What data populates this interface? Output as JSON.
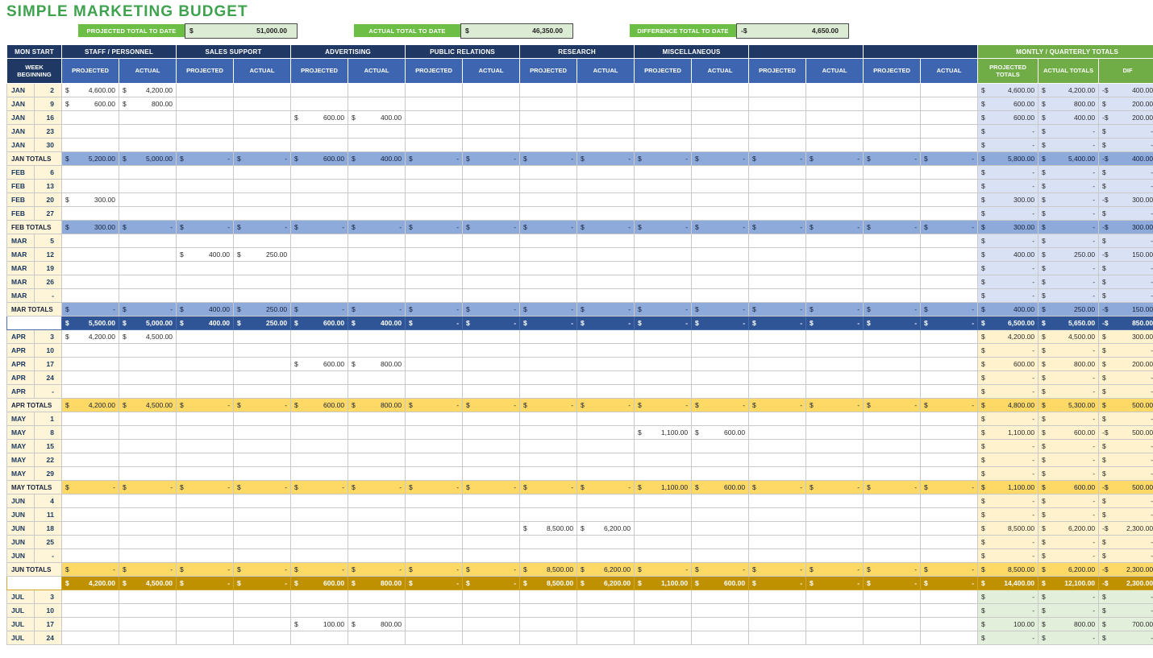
{
  "title": "SIMPLE MARKETING BUDGET",
  "summary": [
    {
      "label": "PROJECTED TOTAL TO DATE",
      "currency": "$",
      "value": "51,000.00"
    },
    {
      "label": "ACTUAL TOTAL TO DATE",
      "currency": "$",
      "value": "46,350.00"
    },
    {
      "label": "DIFFERENCE TOTAL TO DATE",
      "currency": "-$",
      "value": "4,650.00"
    }
  ],
  "colors": {
    "title_green": "#3FA24E",
    "header_navy": "#1F3864",
    "subheader_blue": "#3E66B0",
    "totals_green": "#70AD47",
    "summary_label_green": "#6CBE45",
    "summary_value_bg": "#DCEBD4",
    "label_cream": "#FEF4D8",
    "q1_light": "#D9E1F5",
    "q1_mid": "#8EAADB",
    "q1_dark": "#2F5597",
    "q2_light": "#FFF2CC",
    "q2_mid": "#FFD966",
    "q2_dark": "#BF9000",
    "q3_light": "#E2EFDA"
  },
  "table": {
    "corner": "MON START",
    "week_col": "WEEK BEGINNING",
    "groups": [
      "STAFF / PERSONNEL",
      "SALES SUPPORT",
      "ADVERTISING",
      "PUBLIC RELATIONS",
      "RESEARCH",
      "MISCELLANEOUS",
      "",
      ""
    ],
    "sub": {
      "projected": "PROJECTED",
      "actual": "ACTUAL"
    },
    "totals_header": "MONTLY / QUARTERLY TOTALS",
    "totals_cols": [
      "PROJECTED TOTALS",
      "ACTUAL TOTALS",
      "DIF"
    ],
    "rows": [
      {
        "m": "JAN",
        "d": "2",
        "type": "week",
        "q": "q1",
        "cells": {
          "0": "4,600.00",
          "1": "4,200.00"
        },
        "tp": "4,600.00",
        "ta": "4,200.00",
        "td": "400.00",
        "ts": "-$"
      },
      {
        "m": "JAN",
        "d": "9",
        "type": "week",
        "q": "q1",
        "cells": {
          "0": "600.00",
          "1": "800.00"
        },
        "tp": "600.00",
        "ta": "800.00",
        "td": "200.00",
        "ts": "$"
      },
      {
        "m": "JAN",
        "d": "16",
        "type": "week",
        "q": "q1",
        "cells": {
          "4": "600.00",
          "5": "400.00"
        },
        "tp": "600.00",
        "ta": "400.00",
        "td": "200.00",
        "ts": "-$"
      },
      {
        "m": "JAN",
        "d": "23",
        "type": "week",
        "q": "q1",
        "cells": {},
        "tp": "-",
        "ta": "-",
        "td": "-",
        "ts": "$"
      },
      {
        "m": "JAN",
        "d": "30",
        "type": "week",
        "q": "q1",
        "cells": {},
        "tp": "-",
        "ta": "-",
        "td": "-",
        "ts": "$"
      },
      {
        "label": "JAN TOTALS",
        "type": "mtotal",
        "q": "q1",
        "cells": [
          "5,200.00",
          "5,000.00",
          "-",
          "-",
          "600.00",
          "400.00",
          "-",
          "-",
          "-",
          "-",
          "-",
          "-",
          "-",
          "-",
          "-",
          "-"
        ],
        "tp": "5,800.00",
        "ta": "5,400.00",
        "td": "400.00",
        "ts": "-$"
      },
      {
        "m": "FEB",
        "d": "6",
        "type": "week",
        "q": "q1",
        "cells": {},
        "tp": "-",
        "ta": "-",
        "td": "-",
        "ts": "$"
      },
      {
        "m": "FEB",
        "d": "13",
        "type": "week",
        "q": "q1",
        "cells": {},
        "tp": "-",
        "ta": "-",
        "td": "-",
        "ts": "$"
      },
      {
        "m": "FEB",
        "d": "20",
        "type": "week",
        "q": "q1",
        "cells": {
          "0": "300.00"
        },
        "tp": "300.00",
        "ta": "-",
        "td": "300.00",
        "ts": "-$"
      },
      {
        "m": "FEB",
        "d": "27",
        "type": "week",
        "q": "q1",
        "cells": {},
        "tp": "-",
        "ta": "-",
        "td": "-",
        "ts": "$"
      },
      {
        "label": "FEB TOTALS",
        "type": "mtotal",
        "q": "q1",
        "cells": [
          "300.00",
          "-",
          "-",
          "-",
          "-",
          "-",
          "-",
          "-",
          "-",
          "-",
          "-",
          "-",
          "-",
          "-",
          "-",
          "-"
        ],
        "tp": "300.00",
        "ta": "-",
        "td": "300.00",
        "ts": "-$"
      },
      {
        "m": "MAR",
        "d": "5",
        "type": "week",
        "q": "q1",
        "cells": {},
        "tp": "-",
        "ta": "-",
        "td": "-",
        "ts": "$"
      },
      {
        "m": "MAR",
        "d": "12",
        "type": "week",
        "q": "q1",
        "cells": {
          "2": "400.00",
          "3": "250.00"
        },
        "tp": "400.00",
        "ta": "250.00",
        "td": "150.00",
        "ts": "-$"
      },
      {
        "m": "MAR",
        "d": "19",
        "type": "week",
        "q": "q1",
        "cells": {},
        "tp": "-",
        "ta": "-",
        "td": "-",
        "ts": "$"
      },
      {
        "m": "MAR",
        "d": "26",
        "type": "week",
        "q": "q1",
        "cells": {},
        "tp": "-",
        "ta": "-",
        "td": "-",
        "ts": "$"
      },
      {
        "m": "MAR",
        "d": "-",
        "type": "week",
        "q": "q1",
        "cells": {},
        "tp": "-",
        "ta": "-",
        "td": "-",
        "ts": "$"
      },
      {
        "label": "MAR TOTALS",
        "type": "mtotal",
        "q": "q1",
        "cells": [
          "-",
          "-",
          "400.00",
          "250.00",
          "-",
          "-",
          "-",
          "-",
          "-",
          "-",
          "-",
          "-",
          "-",
          "-",
          "-",
          "-"
        ],
        "tp": "400.00",
        "ta": "250.00",
        "td": "150.00",
        "ts": "-$"
      },
      {
        "label": "Q1 TOTALS",
        "type": "qtotal",
        "q": "q1",
        "cells": [
          "5,500.00",
          "5,000.00",
          "400.00",
          "250.00",
          "600.00",
          "400.00",
          "-",
          "-",
          "-",
          "-",
          "-",
          "-",
          "-",
          "-",
          "-",
          "-"
        ],
        "tp": "6,500.00",
        "ta": "5,650.00",
        "td": "850.00",
        "ts": "-$"
      },
      {
        "m": "APR",
        "d": "3",
        "type": "week",
        "q": "q2",
        "cells": {
          "0": "4,200.00",
          "1": "4,500.00"
        },
        "tp": "4,200.00",
        "ta": "4,500.00",
        "td": "300.00",
        "ts": "$"
      },
      {
        "m": "APR",
        "d": "10",
        "type": "week",
        "q": "q2",
        "cells": {},
        "tp": "-",
        "ta": "-",
        "td": "-",
        "ts": "$"
      },
      {
        "m": "APR",
        "d": "17",
        "type": "week",
        "q": "q2",
        "cells": {
          "4": "600.00",
          "5": "800.00"
        },
        "tp": "600.00",
        "ta": "800.00",
        "td": "200.00",
        "ts": "$"
      },
      {
        "m": "APR",
        "d": "24",
        "type": "week",
        "q": "q2",
        "cells": {},
        "tp": "-",
        "ta": "-",
        "td": "-",
        "ts": "$"
      },
      {
        "m": "APR",
        "d": "-",
        "type": "week",
        "q": "q2",
        "cells": {},
        "tp": "-",
        "ta": "-",
        "td": "-",
        "ts": "$"
      },
      {
        "label": "APR TOTALS",
        "type": "mtotal",
        "q": "q2",
        "cells": [
          "4,200.00",
          "4,500.00",
          "-",
          "-",
          "600.00",
          "800.00",
          "-",
          "-",
          "-",
          "-",
          "-",
          "-",
          "-",
          "-",
          "-",
          "-"
        ],
        "tp": "4,800.00",
        "ta": "5,300.00",
        "td": "500.00",
        "ts": "$"
      },
      {
        "m": "MAY",
        "d": "1",
        "type": "week",
        "q": "q2",
        "cells": {},
        "tp": "-",
        "ta": "-",
        "td": "-",
        "ts": "$"
      },
      {
        "m": "MAY",
        "d": "8",
        "type": "week",
        "q": "q2",
        "cells": {
          "10": "1,100.00",
          "11": "600.00"
        },
        "tp": "1,100.00",
        "ta": "600.00",
        "td": "500.00",
        "ts": "-$"
      },
      {
        "m": "MAY",
        "d": "15",
        "type": "week",
        "q": "q2",
        "cells": {},
        "tp": "-",
        "ta": "-",
        "td": "-",
        "ts": "$"
      },
      {
        "m": "MAY",
        "d": "22",
        "type": "week",
        "q": "q2",
        "cells": {},
        "tp": "-",
        "ta": "-",
        "td": "-",
        "ts": "$"
      },
      {
        "m": "MAY",
        "d": "29",
        "type": "week",
        "q": "q2",
        "cells": {},
        "tp": "-",
        "ta": "-",
        "td": "-",
        "ts": "$"
      },
      {
        "label": "MAY TOTALS",
        "type": "mtotal",
        "q": "q2",
        "cells": [
          "-",
          "-",
          "-",
          "-",
          "-",
          "-",
          "-",
          "-",
          "-",
          "-",
          "1,100.00",
          "600.00",
          "-",
          "-",
          "-",
          "-"
        ],
        "tp": "1,100.00",
        "ta": "600.00",
        "td": "500.00",
        "ts": "-$"
      },
      {
        "m": "JUN",
        "d": "4",
        "type": "week",
        "q": "q2",
        "cells": {},
        "tp": "-",
        "ta": "-",
        "td": "-",
        "ts": "$"
      },
      {
        "m": "JUN",
        "d": "11",
        "type": "week",
        "q": "q2",
        "cells": {},
        "tp": "-",
        "ta": "-",
        "td": "-",
        "ts": "$"
      },
      {
        "m": "JUN",
        "d": "18",
        "type": "week",
        "q": "q2",
        "cells": {
          "8": "8,500.00",
          "9": "6,200.00"
        },
        "tp": "8,500.00",
        "ta": "6,200.00",
        "td": "2,300.00",
        "ts": "-$"
      },
      {
        "m": "JUN",
        "d": "25",
        "type": "week",
        "q": "q2",
        "cells": {},
        "tp": "-",
        "ta": "-",
        "td": "-",
        "ts": "$"
      },
      {
        "m": "JUN",
        "d": "-",
        "type": "week",
        "q": "q2",
        "cells": {},
        "tp": "-",
        "ta": "-",
        "td": "-",
        "ts": "$"
      },
      {
        "label": "JUN TOTALS",
        "type": "mtotal",
        "q": "q2",
        "cells": [
          "-",
          "-",
          "-",
          "-",
          "-",
          "-",
          "-",
          "-",
          "8,500.00",
          "6,200.00",
          "-",
          "-",
          "-",
          "-",
          "-",
          "-"
        ],
        "tp": "8,500.00",
        "ta": "6,200.00",
        "td": "2,300.00",
        "ts": "-$"
      },
      {
        "label": "Q2 TOTALS",
        "type": "qtotal",
        "q": "q2",
        "cells": [
          "4,200.00",
          "4,500.00",
          "-",
          "-",
          "600.00",
          "800.00",
          "-",
          "-",
          "8,500.00",
          "6,200.00",
          "1,100.00",
          "600.00",
          "-",
          "-",
          "-",
          "-"
        ],
        "tp": "14,400.00",
        "ta": "12,100.00",
        "td": "2,300.00",
        "ts": "-$"
      },
      {
        "m": "JUL",
        "d": "3",
        "type": "week",
        "q": "q3",
        "cells": {},
        "tp": "-",
        "ta": "-",
        "td": "-",
        "ts": "$"
      },
      {
        "m": "JUL",
        "d": "10",
        "type": "week",
        "q": "q3",
        "cells": {},
        "tp": "-",
        "ta": "-",
        "td": "-",
        "ts": "$"
      },
      {
        "m": "JUL",
        "d": "17",
        "type": "week",
        "q": "q3",
        "cells": {
          "4": "100.00",
          "5": "800.00"
        },
        "tp": "100.00",
        "ta": "800.00",
        "td": "700.00",
        "ts": "$"
      },
      {
        "m": "JUL",
        "d": "24",
        "type": "week",
        "q": "q3",
        "cells": {},
        "tp": "-",
        "ta": "-",
        "td": "-",
        "ts": "$"
      }
    ]
  }
}
